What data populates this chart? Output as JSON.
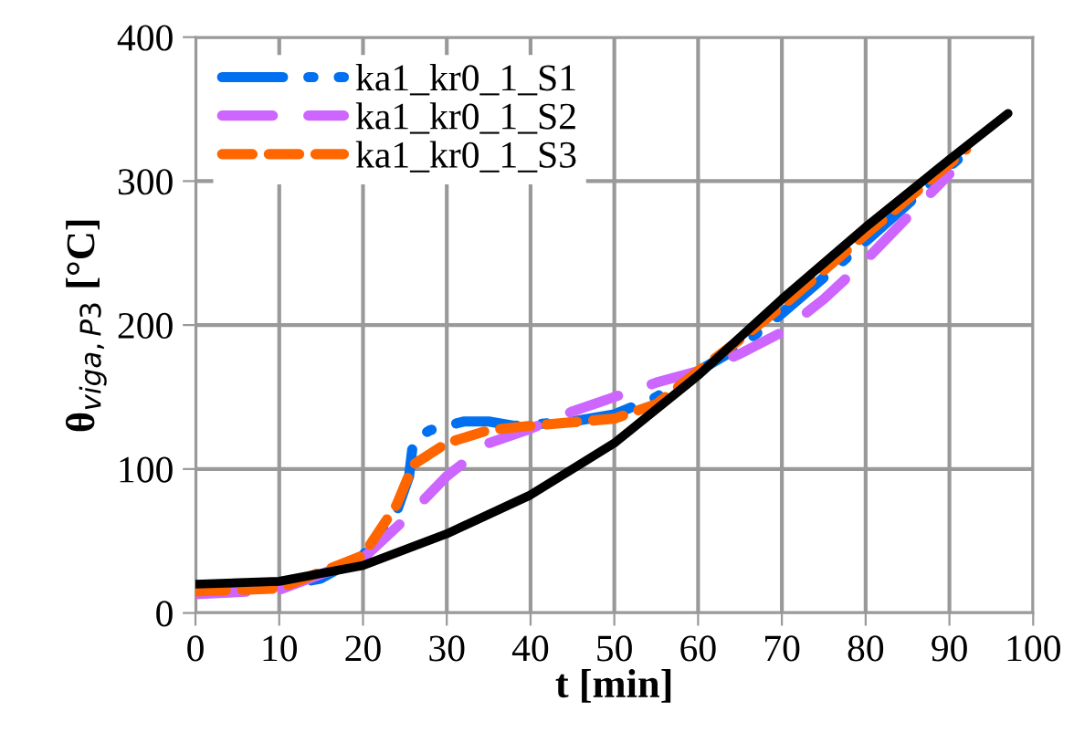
{
  "chart_data": {
    "type": "line",
    "xlabel": "t [min]",
    "ylabel": "θ$_{viga,P3}$ [°C]",
    "xlim": [
      0,
      100
    ],
    "ylim": [
      0,
      400
    ],
    "xticks": [
      0,
      10,
      20,
      30,
      40,
      50,
      60,
      70,
      80,
      90,
      100
    ],
    "yticks": [
      0,
      100,
      200,
      300,
      400
    ],
    "grid": true,
    "legend": "top left",
    "series": [
      {
        "name": "ka1_kr0_1_S1",
        "color": "#0070f0",
        "line_style": "dashdot",
        "x": [
          0,
          10,
          15,
          20,
          24,
          25.5,
          26,
          28,
          32,
          35,
          38,
          45,
          50,
          55,
          60,
          65,
          70,
          80,
          90,
          91
        ],
        "values": [
          15,
          18,
          24,
          40,
          70,
          95,
          120,
          127,
          133,
          133,
          130,
          133,
          138,
          150,
          168,
          185,
          208,
          258,
          310,
          315
        ]
      },
      {
        "name": "ka1_kr0_1_S2",
        "color": "#cc66ff",
        "line_style": "longdash",
        "x": [
          0,
          10,
          20,
          25,
          30,
          35,
          40,
          45,
          50,
          55,
          60,
          65,
          70,
          75,
          80,
          85,
          90
        ],
        "values": [
          13,
          16,
          38,
          65,
          95,
          118,
          128,
          140,
          150,
          160,
          168,
          180,
          195,
          218,
          245,
          275,
          305
        ]
      },
      {
        "name": "ka1_kr0_1_S3",
        "color": "#ff6600",
        "line_style": "dashed",
        "x": [
          0,
          10,
          20,
          24,
          26,
          30,
          35,
          40,
          50,
          55,
          60,
          65,
          70,
          80,
          90,
          92
        ],
        "values": [
          15,
          17,
          40,
          75,
          103,
          118,
          127,
          130,
          135,
          145,
          168,
          190,
          213,
          263,
          312,
          322
        ]
      },
      {
        "color": "#000000",
        "line_style": "solid",
        "x": [
          0,
          10,
          20,
          30,
          40,
          50,
          60,
          70,
          80,
          90,
          97
        ],
        "values": [
          20,
          22,
          33,
          55,
          82,
          118,
          165,
          218,
          268,
          315,
          347
        ]
      }
    ]
  }
}
